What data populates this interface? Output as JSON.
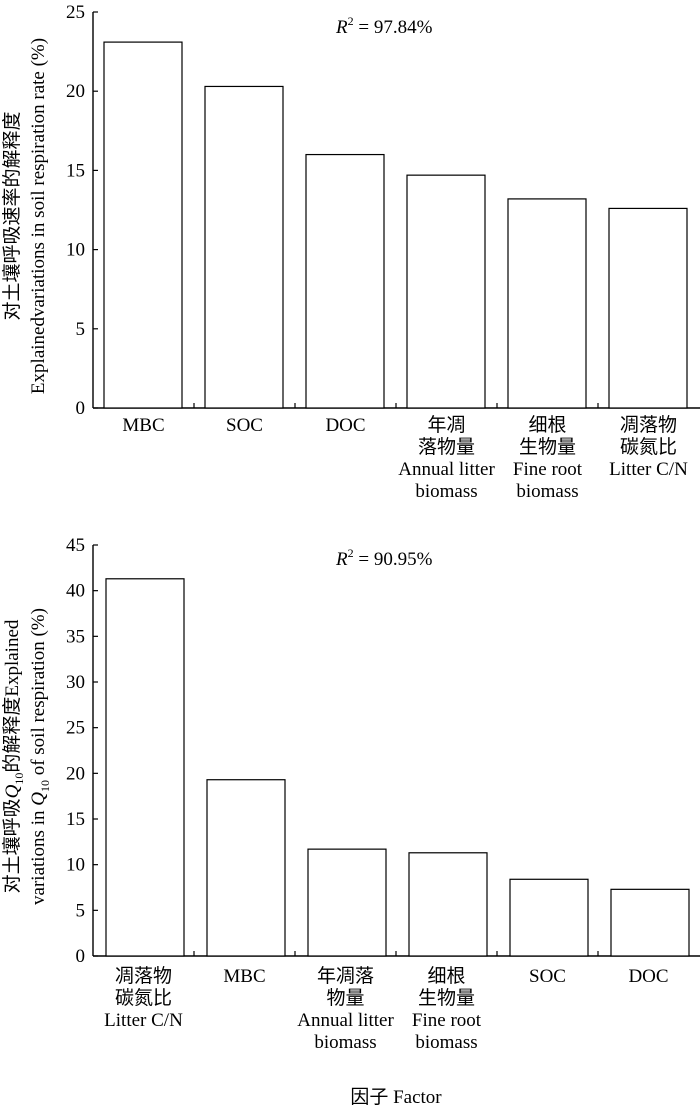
{
  "chart_data": [
    {
      "type": "bar",
      "annotation": {
        "r2_label": "R",
        "r2_value": " = 97.84%"
      },
      "ylabel": {
        "line1": "对土壤呼吸速率的解释度",
        "line2": "Explainedvariations in soil respiration rate (%)"
      },
      "ylim": [
        0,
        25
      ],
      "yticks": [
        0,
        5,
        10,
        15,
        20,
        25
      ],
      "categories": [
        [
          "MBC"
        ],
        [
          "SOC"
        ],
        [
          "DOC"
        ],
        [
          "年凋",
          "落物量",
          "Annual litter",
          "biomass"
        ],
        [
          "细根",
          "生物量",
          "Fine root",
          "biomass"
        ],
        [
          "凋落物",
          "碳氮比",
          "Litter C/N"
        ]
      ],
      "values": [
        23.1,
        20.3,
        16.0,
        14.7,
        13.2,
        12.6
      ]
    },
    {
      "type": "bar",
      "annotation": {
        "r2_label": "R",
        "r2_value": " = 90.95%"
      },
      "ylabel": {
        "line1": "对土壤呼吸Q10的解释度Explained",
        "line2": "variations in Q10 of soil respiration (%)"
      },
      "ylim": [
        0,
        45
      ],
      "yticks": [
        0,
        5,
        10,
        15,
        20,
        25,
        30,
        35,
        40,
        45
      ],
      "categories": [
        [
          "凋落物",
          "碳氮比",
          "Litter C/N"
        ],
        [
          "MBC"
        ],
        [
          "年凋落",
          "物量",
          "Annual litter",
          "biomass"
        ],
        [
          "细根",
          "生物量",
          "Fine root",
          "biomass"
        ],
        [
          "SOC"
        ],
        [
          "DOC"
        ]
      ],
      "values": [
        41.3,
        19.3,
        11.7,
        11.3,
        8.4,
        7.3
      ]
    }
  ],
  "xlabel": "因子  Factor"
}
